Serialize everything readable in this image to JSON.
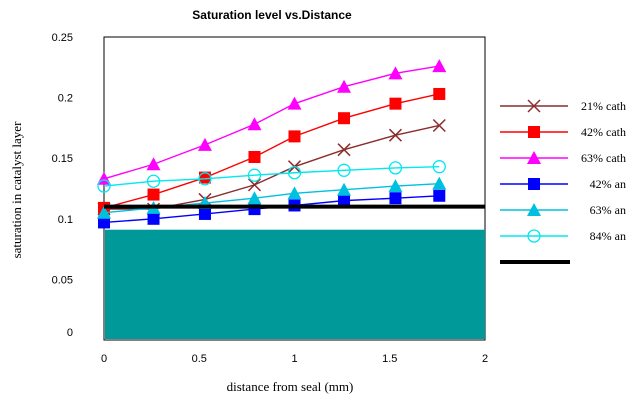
{
  "chart_data": {
    "type": "line",
    "title": "Saturation level vs.Distance",
    "xlabel": "distance from seal (mm)",
    "ylabel": "saturation in catalyst layer",
    "xlim": [
      0,
      2
    ],
    "ylim": [
      0,
      0.25
    ],
    "x_ticks": [
      "0",
      "0.5",
      "1",
      "1.5",
      "2"
    ],
    "y_ticks": [
      "0",
      "0.05",
      "0.1",
      "0.15",
      "0.2",
      "0.25"
    ],
    "x": [
      0.0,
      0.26,
      0.53,
      0.79,
      1.0,
      1.26,
      1.53,
      1.76
    ],
    "series": [
      {
        "name": "21% cath",
        "color": "#8b2d2d",
        "marker": "x",
        "values": [
          0.108,
          0.108,
          0.116,
          0.128,
          0.143,
          0.157,
          0.169,
          0.177
        ]
      },
      {
        "name": "42% cath",
        "color": "#ff0000",
        "marker": "square",
        "values": [
          0.109,
          0.12,
          0.134,
          0.151,
          0.168,
          0.183,
          0.195,
          0.203
        ]
      },
      {
        "name": "63% cath",
        "color": "#ff00ff",
        "marker": "triangle",
        "values": [
          0.133,
          0.145,
          0.161,
          0.178,
          0.195,
          0.209,
          0.22,
          0.226
        ]
      },
      {
        "name": "42% an",
        "color": "#0000ff",
        "marker": "square",
        "values": [
          0.097,
          0.1,
          0.104,
          0.108,
          0.111,
          0.115,
          0.117,
          0.119
        ]
      },
      {
        "name": "63% an",
        "color": "#00c0e0",
        "marker": "triangle",
        "values": [
          0.105,
          0.109,
          0.113,
          0.117,
          0.121,
          0.124,
          0.127,
          0.129
        ]
      },
      {
        "name": "84% an",
        "color": "#00e8f0",
        "marker": "circle",
        "values": [
          0.127,
          0.131,
          0.133,
          0.136,
          0.138,
          0.14,
          0.142,
          0.143
        ]
      }
    ],
    "reference_line": {
      "y": 0.11,
      "color": "#000000"
    },
    "filled_region": {
      "y_top": 0.091,
      "color": "#009999"
    },
    "grid": false,
    "legend_position": "right"
  }
}
